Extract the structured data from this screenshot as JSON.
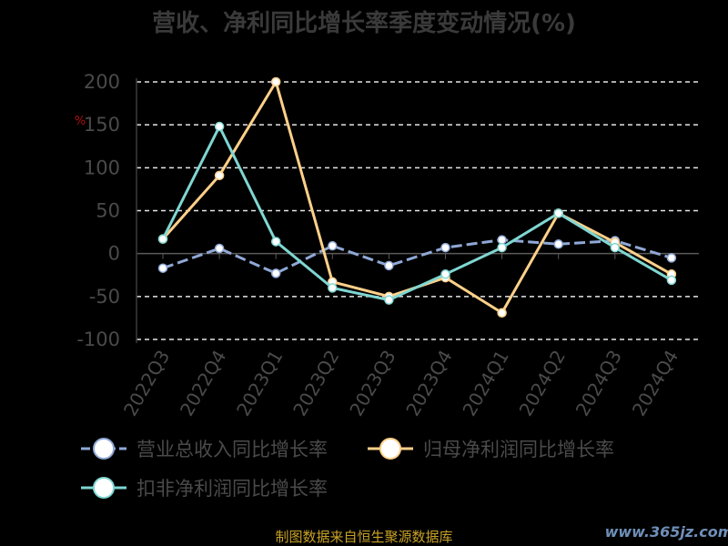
{
  "chart_data": {
    "type": "line",
    "title": "营收、净利同比增长率季度变动情况(%)",
    "unit_label": "%",
    "categories": [
      "2022Q3",
      "2022Q4",
      "2023Q1",
      "2023Q2",
      "2023Q3",
      "2023Q4",
      "2024Q1",
      "2024Q2",
      "2024Q3",
      "2024Q4"
    ],
    "series": [
      {
        "name": "营业总收入同比增长率",
        "color": "#8fa8d6",
        "dashed": true,
        "values": [
          -17,
          6,
          -23,
          9,
          -14,
          7,
          16,
          11,
          15,
          -5
        ]
      },
      {
        "name": "归母净利润同比增长率",
        "color": "#ffd08a",
        "dashed": false,
        "values": [
          17,
          91,
          200,
          -33,
          -50,
          -28,
          -69,
          47,
          13,
          -24
        ]
      },
      {
        "name": "扣非净利润同比增长率",
        "color": "#7fd6d2",
        "dashed": false,
        "values": [
          17,
          148,
          14,
          -40,
          -54,
          -24,
          7,
          47,
          7,
          -31
        ]
      }
    ],
    "yticks": [
      200,
      150,
      100,
      50,
      0,
      -50,
      -100
    ],
    "ylim": [
      -100,
      200
    ],
    "grid": true,
    "legend_position": "bottom"
  },
  "footer": {
    "source": "制图数据来自恒生聚源数据库"
  },
  "watermark": {
    "text": "www.365jz.com"
  }
}
